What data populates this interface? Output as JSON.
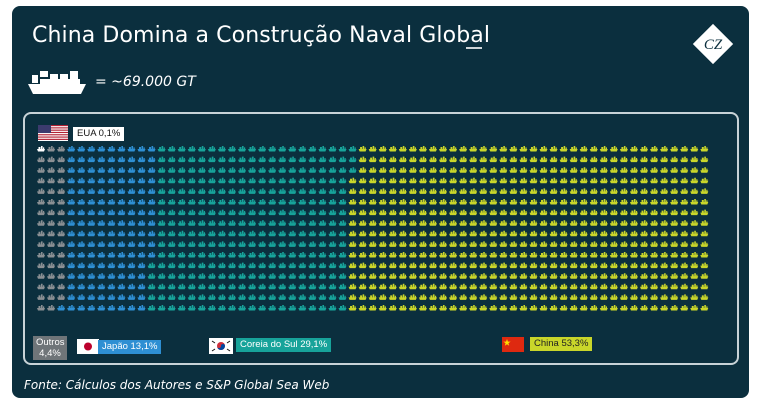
{
  "title": "China Domina a Construção Naval Global",
  "legend": {
    "icon": "ship-icon",
    "text": "= ~69.000 GT"
  },
  "source": "Fonte: Cálculos dos Autores e S&P Global Sea Web",
  "colors": {
    "background": "#0b2f3e",
    "outros": "#8a8f93",
    "japao": "#2e8fd3",
    "coreia": "#17a39a",
    "china": "#c9d62a",
    "eua": "#ffffff"
  },
  "chart_data": {
    "type": "waffle",
    "unit": "~69.000 GT",
    "grid": {
      "rows": 16,
      "cols": 67
    },
    "series": [
      {
        "name": "Outros",
        "value": 4.4,
        "label": "Outros 4,4%",
        "color": "#8a8f93",
        "flag": "none"
      },
      {
        "name": "Japão",
        "value": 13.1,
        "label": "Japão 13,1%",
        "color": "#2e8fd3",
        "flag": "jp"
      },
      {
        "name": "Coreia do Sul",
        "value": 29.1,
        "label": "Coreia do Sul 29,1%",
        "color": "#17a39a",
        "flag": "kr"
      },
      {
        "name": "China",
        "value": 53.3,
        "label": "China 53,3%",
        "color": "#c9d62a",
        "flag": "cn"
      },
      {
        "name": "EUA",
        "value": 0.1,
        "label": "EUA 0,1%",
        "color": "#ffffff",
        "flag": "us"
      }
    ]
  },
  "logo": {
    "text": "CZ"
  }
}
